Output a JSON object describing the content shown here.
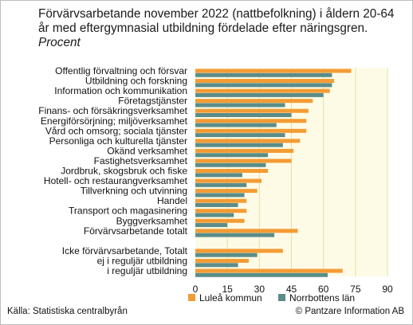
{
  "title": "Förvärvsarbetande november 2022 (nattbefolkning) i åldern 20-64 år med eftergymnasial utbildning fördelade efter näringsgren.",
  "title_unit": "Procent",
  "footer": {
    "source": "Källa: Statistiska centralbyrån",
    "copyright": "© Pantzare Information AB"
  },
  "colors": {
    "lulea": "#f39c35",
    "norrbotten": "#5a8d8a",
    "plot_bg": "#fdfbe6",
    "grid": "#e6e2a8"
  },
  "chart_data": {
    "type": "bar",
    "orientation": "horizontal",
    "categories": [
      "Offentlig förvaltning och försvar",
      "Utbildning och forskning",
      "Information och kommunikation",
      "Företagstjänster",
      "Finans- och försäkringsverksamhet",
      "Energiförsörjning; miljöverksamhet",
      "Vård och omsorg; sociala tjänster",
      "Personliga och kulturella tjänster",
      "Okänd verksamhet",
      "Fastighetsverksamhet",
      "Jordbruk, skogsbruk och fiske",
      "Hotell- och restaurangverksamhet",
      "Tillverkning och utvinning",
      "Handel",
      "Transport och magasinering",
      "Byggverksamhet",
      "Förvärvsarbetande totalt",
      "",
      "Icke förvärvsarbetande, Totalt",
      "ej i reguljär utbildning",
      "i reguljär utbildning"
    ],
    "series": [
      {
        "name": "Luleå kommun",
        "color": "#f39c35",
        "values": [
          73,
          65,
          63,
          55,
          53,
          52,
          52,
          49,
          46,
          45,
          34,
          31,
          29,
          24,
          24,
          23,
          48,
          null,
          41,
          25,
          69
        ]
      },
      {
        "name": "Norrbottens län",
        "color": "#5a8d8a",
        "values": [
          64,
          64,
          60,
          42,
          45,
          38,
          42,
          41,
          34,
          33,
          22,
          24,
          23,
          20,
          18,
          15,
          37,
          null,
          29,
          20,
          62
        ]
      }
    ],
    "xlim": [
      0,
      90
    ],
    "xticks": [
      0,
      15,
      30,
      45,
      60,
      75,
      90
    ],
    "grid": true,
    "legend_position": "bottom"
  }
}
